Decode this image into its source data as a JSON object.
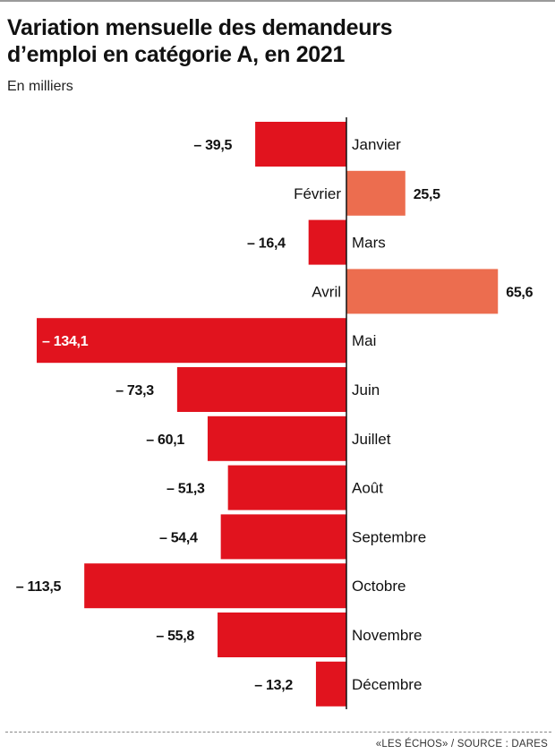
{
  "title_line1": "Variation mensuelle des demandeurs",
  "title_line2": "d’emploi en catégorie A, en 2021",
  "subtitle": "En milliers",
  "source": "«LES ÉCHOS» / SOURCE : DARES",
  "colors": {
    "negative": "#e1131e",
    "positive": "#ec6d4f",
    "axis": "#111111"
  },
  "chart_data": {
    "type": "bar",
    "orientation": "horizontal",
    "title": "Variation mensuelle des demandeurs d’emploi en catégorie A, en 2021",
    "subtitle": "En milliers",
    "categories": [
      "Janvier",
      "Février",
      "Mars",
      "Avril",
      "Mai",
      "Juin",
      "Juillet",
      "Août",
      "Septembre",
      "Octobre",
      "Novembre",
      "Décembre"
    ],
    "values": [
      -39.5,
      25.5,
      -16.4,
      65.6,
      -134.1,
      -73.3,
      -60.1,
      -51.3,
      -54.4,
      -113.5,
      -55.8,
      -13.2
    ],
    "value_labels": [
      "– 39,5",
      "25,5",
      "– 16,4",
      "65,6",
      "– 134,1",
      "– 73,3",
      "– 60,1",
      "– 51,3",
      "– 54,4",
      "– 113,5",
      "– 55,8",
      "– 13,2"
    ],
    "grid": false,
    "legend": "none"
  }
}
